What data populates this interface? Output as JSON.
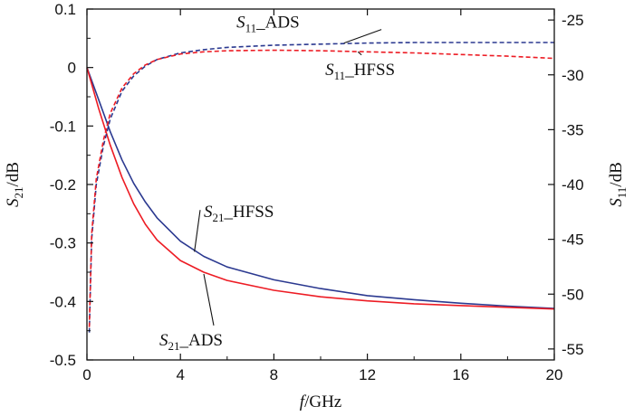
{
  "chart_data": {
    "type": "line",
    "title": "",
    "x": {
      "label_var": "f",
      "label_unit": "/GHz",
      "lim": [
        0,
        20
      ],
      "ticks": [
        0,
        4,
        8,
        12,
        16,
        20
      ],
      "tick_labels": [
        "0",
        "4",
        "8",
        "12",
        "16",
        "20"
      ]
    },
    "y_left": {
      "label_var": "S",
      "label_sub": "21",
      "label_unit": "/dB",
      "lim": [
        -0.5,
        0.1
      ],
      "ticks": [
        0.1,
        0,
        -0.1,
        -0.2,
        -0.3,
        -0.4,
        -0.5
      ],
      "tick_labels": [
        "0.1",
        "0",
        "-0.1",
        "-0.2",
        "-0.3",
        "-0.4",
        "-0.5"
      ]
    },
    "y_right": {
      "label_var": "S",
      "label_sub": "11",
      "label_unit": "/dB",
      "lim": [
        -56,
        -24
      ],
      "ticks": [
        -25,
        -30,
        -35,
        -40,
        -45,
        -50,
        -55
      ],
      "tick_labels": [
        "-25",
        "-30",
        "-35",
        "-40",
        "-45",
        "-50",
        "-55"
      ]
    },
    "grid": false,
    "legend": "none",
    "series": [
      {
        "name": "S21_HFSS",
        "axis": "left",
        "color": "#2b3990",
        "dash": "solid",
        "x": [
          0,
          0.5,
          1,
          1.5,
          2,
          2.5,
          3,
          4,
          5,
          6,
          8,
          10,
          12,
          14,
          16,
          18,
          20
        ],
        "y": [
          0,
          -0.055,
          -0.11,
          -0.158,
          -0.198,
          -0.23,
          -0.257,
          -0.297,
          -0.323,
          -0.341,
          -0.363,
          -0.378,
          -0.39,
          -0.397,
          -0.403,
          -0.408,
          -0.412
        ]
      },
      {
        "name": "S21_ADS",
        "axis": "left",
        "color": "#ed1c24",
        "dash": "solid",
        "x": [
          0,
          0.5,
          1,
          1.5,
          2,
          2.5,
          3,
          4,
          5,
          6,
          8,
          10,
          12,
          14,
          16,
          18,
          20
        ],
        "y": [
          0,
          -0.07,
          -0.133,
          -0.188,
          -0.233,
          -0.268,
          -0.295,
          -0.33,
          -0.35,
          -0.364,
          -0.381,
          -0.392,
          -0.399,
          -0.404,
          -0.407,
          -0.41,
          -0.413
        ]
      },
      {
        "name": "S11_ADS",
        "axis": "right",
        "color": "#2b3990",
        "dash": "dashed",
        "x": [
          0.1,
          0.2,
          0.4,
          0.7,
          1,
          1.5,
          2,
          2.5,
          3,
          4,
          5,
          6,
          8,
          10,
          12,
          14,
          16,
          18,
          20
        ],
        "y": [
          -53.5,
          -45,
          -40,
          -36.5,
          -34,
          -31.5,
          -30.1,
          -29.2,
          -28.6,
          -28,
          -27.7,
          -27.5,
          -27.3,
          -27.2,
          -27.1,
          -27.05,
          -27.05,
          -27.05,
          -27.05
        ]
      },
      {
        "name": "S11_HFSS",
        "axis": "right",
        "color": "#ed1c24",
        "dash": "dashed",
        "x": [
          0.1,
          0.2,
          0.4,
          0.7,
          1,
          1.5,
          2,
          2.5,
          3,
          4,
          5,
          6,
          8,
          10,
          12,
          14,
          16,
          18,
          20
        ],
        "y": [
          -53,
          -44.5,
          -39.5,
          -36,
          -33.5,
          -31.2,
          -29.9,
          -29.1,
          -28.6,
          -28.1,
          -27.9,
          -27.8,
          -27.75,
          -27.8,
          -27.9,
          -28,
          -28.15,
          -28.3,
          -28.5
        ]
      }
    ],
    "annotations": [
      {
        "series": "S11_ADS",
        "var": "S",
        "sub": "11",
        "suffix": "_ADS",
        "text_at": [
          6.4,
          -25.7
        ],
        "point": [
          11,
          -27.1
        ]
      },
      {
        "series": "S11_HFSS",
        "var": "S",
        "sub": "11",
        "suffix": "_HFSS",
        "text_at": [
          10.2,
          -30.0
        ],
        "point": [
          11.6,
          -27.9
        ]
      },
      {
        "series": "S21_HFSS",
        "var": "S",
        "sub": "21",
        "suffix": "_HFSS",
        "text_at": [
          5.0,
          -0.256
        ],
        "point": [
          4.6,
          -0.315
        ]
      },
      {
        "series": "S21_ADS",
        "var": "S",
        "sub": "21",
        "suffix": "_ADS",
        "text_at": [
          3.1,
          -0.475
        ],
        "point": [
          5.0,
          -0.353
        ]
      }
    ]
  }
}
